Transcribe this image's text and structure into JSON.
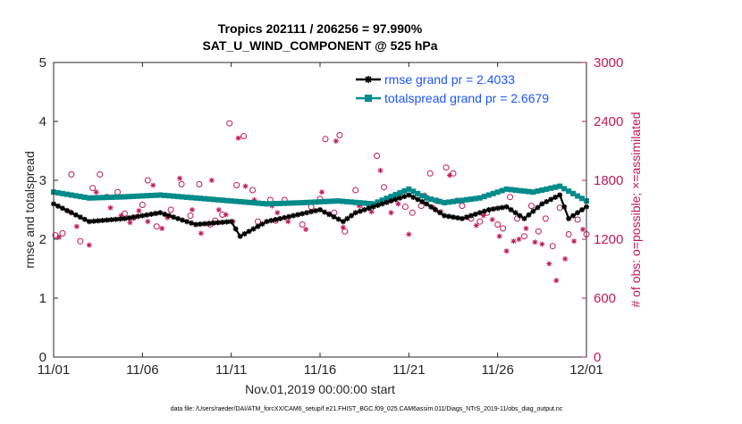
{
  "chart_data": {
    "type": "line",
    "title": "Tropics 202111 / 206256 = 97.990%",
    "subtitle": "SAT_U_WIND_COMPONENT @ 525 hPa",
    "xlabel": "Nov.01,2019 00:00:00 start",
    "ylabel_left": "rmse and totalspread",
    "ylabel_right": "# of obs: o=possible; ×=assimilated",
    "ylim_left": [
      0,
      5
    ],
    "ylim_right": [
      0,
      3000
    ],
    "xlim": [
      0,
      30
    ],
    "x_tick_labels": [
      "11/01",
      "11/06",
      "11/11",
      "11/16",
      "11/21",
      "11/26",
      "12/01"
    ],
    "y_left_tick_labels": [
      "0",
      "1",
      "2",
      "3",
      "4",
      "5"
    ],
    "y_right_tick_labels": [
      "0",
      "600",
      "1200",
      "1800",
      "2400",
      "3000"
    ],
    "grid": false,
    "legend_position": "top-right",
    "colors": {
      "rmse": "#000000",
      "spread": "#008b8b",
      "obs": "#c2185b",
      "legend_text": "#1a55ff"
    },
    "series": [
      {
        "name": "rmse grand pr = 2.4033",
        "color": "#000000",
        "marker": "star",
        "x": [
          0,
          2,
          4,
          6,
          8,
          10,
          10.5,
          12,
          13.5,
          15,
          16.3,
          17,
          18.5,
          20,
          21,
          22,
          23,
          24.5,
          25.5,
          26.5,
          27.5,
          28.5,
          29,
          30
        ],
        "y": [
          2.6,
          2.3,
          2.35,
          2.45,
          2.25,
          2.3,
          2.05,
          2.3,
          2.4,
          2.5,
          2.3,
          2.45,
          2.6,
          2.75,
          2.6,
          2.4,
          2.35,
          2.5,
          2.55,
          2.35,
          2.6,
          2.75,
          2.35,
          2.55
        ]
      },
      {
        "name": "totalspread grand pr = 2.6679",
        "color": "#008b8b",
        "marker": "square",
        "x": [
          0,
          2,
          4,
          6,
          8,
          10,
          12,
          14,
          16,
          18,
          20,
          21,
          22,
          24,
          25.5,
          27,
          28.5,
          30
        ],
        "y": [
          2.8,
          2.7,
          2.72,
          2.75,
          2.7,
          2.65,
          2.6,
          2.62,
          2.65,
          2.6,
          2.85,
          2.7,
          2.62,
          2.7,
          2.85,
          2.8,
          2.9,
          2.65
        ]
      }
    ],
    "obs_possible": {
      "name": "possible",
      "marker": "circle",
      "x": [
        0.1,
        0.5,
        1,
        1.5,
        2.2,
        2.6,
        3,
        3.6,
        4,
        4.5,
        5,
        5.3,
        5.8,
        6.6,
        7.2,
        7.7,
        8.2,
        8.8,
        9.1,
        9.5,
        9.9,
        10.3,
        10.7,
        11.2,
        11.5,
        12.2,
        12.5,
        13,
        14,
        14.5,
        15,
        15.3,
        15.8,
        16.1,
        16.4,
        17,
        17.5,
        18.2,
        18.6,
        19.2,
        19.8,
        20.2,
        20.7,
        21.2,
        21.6,
        22.1,
        22.5,
        23,
        23.5,
        24,
        24.4,
        25,
        25.3,
        25.7,
        26.1,
        26.5,
        26.9,
        27.3,
        27.7,
        28.1,
        28.5,
        29,
        29.5,
        30
      ],
      "y": [
        1240,
        1260,
        1860,
        1180,
        1720,
        1860,
        1630,
        1680,
        1460,
        1420,
        1550,
        1800,
        1330,
        1500,
        1760,
        1440,
        1760,
        1350,
        1390,
        1450,
        2380,
        1750,
        2250,
        1700,
        1380,
        1600,
        1390,
        1600,
        1350,
        1530,
        1610,
        2220,
        1470,
        2260,
        1280,
        1700,
        1530,
        2050,
        1730,
        1630,
        1530,
        1470,
        1540,
        1870,
        1590,
        1930,
        1870,
        1540,
        1410,
        1380,
        1470,
        1350,
        1310,
        1630,
        1410,
        1230,
        1540,
        1280,
        1410,
        1130,
        1520,
        1250,
        1400,
        1250
      ]
    },
    "obs_assimilated": {
      "name": "assimilated",
      "marker": "asterisk",
      "x": [
        0.3,
        0.9,
        1.3,
        2,
        2.4,
        3.2,
        3.8,
        4.3,
        4.8,
        5.3,
        5.6,
        6.1,
        6.4,
        7.1,
        7.8,
        8.3,
        8.9,
        9.3,
        9.7,
        10.1,
        10.4,
        10.8,
        11.3,
        12.3,
        12.6,
        13.2,
        14.2,
        15.1,
        15.5,
        15.9,
        16.3,
        17.2,
        17.9,
        18.4,
        19,
        19.4,
        20,
        20.9,
        21.4,
        21.8,
        22.3,
        22.7,
        23.3,
        23.8,
        24.2,
        24.7,
        25.1,
        25.5,
        25.9,
        26.2,
        26.6,
        27.1,
        27.5,
        27.9,
        28.3,
        28.8,
        29.3,
        29.8
      ],
      "y": [
        1220,
        1480,
        1330,
        1140,
        1680,
        1520,
        1440,
        1370,
        1490,
        1380,
        1750,
        1310,
        1420,
        1820,
        1500,
        1260,
        1800,
        1500,
        1450,
        1380,
        2230,
        1740,
        1600,
        1540,
        1470,
        1380,
        1300,
        1680,
        1460,
        2200,
        1320,
        1540,
        1480,
        1900,
        1470,
        1560,
        1250,
        1650,
        1520,
        1480,
        1850,
        1600,
        1420,
        1340,
        1440,
        1400,
        1230,
        1080,
        1180,
        1200,
        1310,
        1170,
        1150,
        950,
        780,
        1000,
        1180,
        1300
      ]
    }
  },
  "footnote": "data file: /Users/raeder/DAI/ATM_forcXX/CAM6_setup/f.e21.FHIST_BGC.f09_025.CAM6assim.011/Diags_NTrS_2019-11/obs_diag_output.nc"
}
